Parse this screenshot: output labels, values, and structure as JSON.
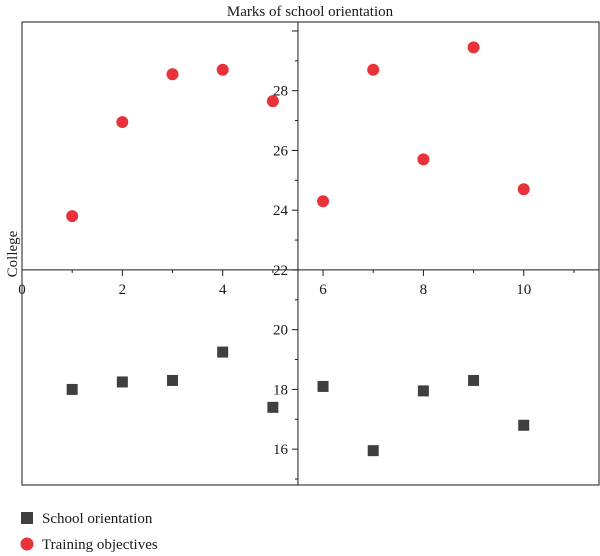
{
  "chart_data": {
    "type": "scatter",
    "title": "Marks of school orientation",
    "ylabel": "College",
    "xlabel": "",
    "xlim": [
      0,
      11.5
    ],
    "ylim": [
      14.8,
      30.3
    ],
    "x_ticks": [
      0,
      2,
      4,
      6,
      8,
      10
    ],
    "y_ticks": [
      16,
      18,
      20,
      22,
      24,
      26,
      28
    ],
    "x_axis_at_y": 22,
    "y_axis_at_x": 5.5,
    "grid": false,
    "legend_position": "bottom-left",
    "series": [
      {
        "name": "School orientation",
        "marker": "square",
        "color": "#3f3f3f",
        "x": [
          1,
          2,
          3,
          4,
          5,
          6,
          7,
          8,
          9,
          10
        ],
        "y": [
          18.0,
          18.25,
          18.3,
          19.25,
          17.4,
          18.1,
          15.95,
          17.95,
          18.3,
          16.8
        ]
      },
      {
        "name": "Training objectives",
        "marker": "circle",
        "color": "#e8323a",
        "x": [
          1,
          2,
          3,
          4,
          5,
          6,
          7,
          8,
          9,
          10
        ],
        "y": [
          23.8,
          26.95,
          28.55,
          28.7,
          27.65,
          24.3,
          28.7,
          25.7,
          29.45,
          24.7
        ]
      }
    ]
  }
}
